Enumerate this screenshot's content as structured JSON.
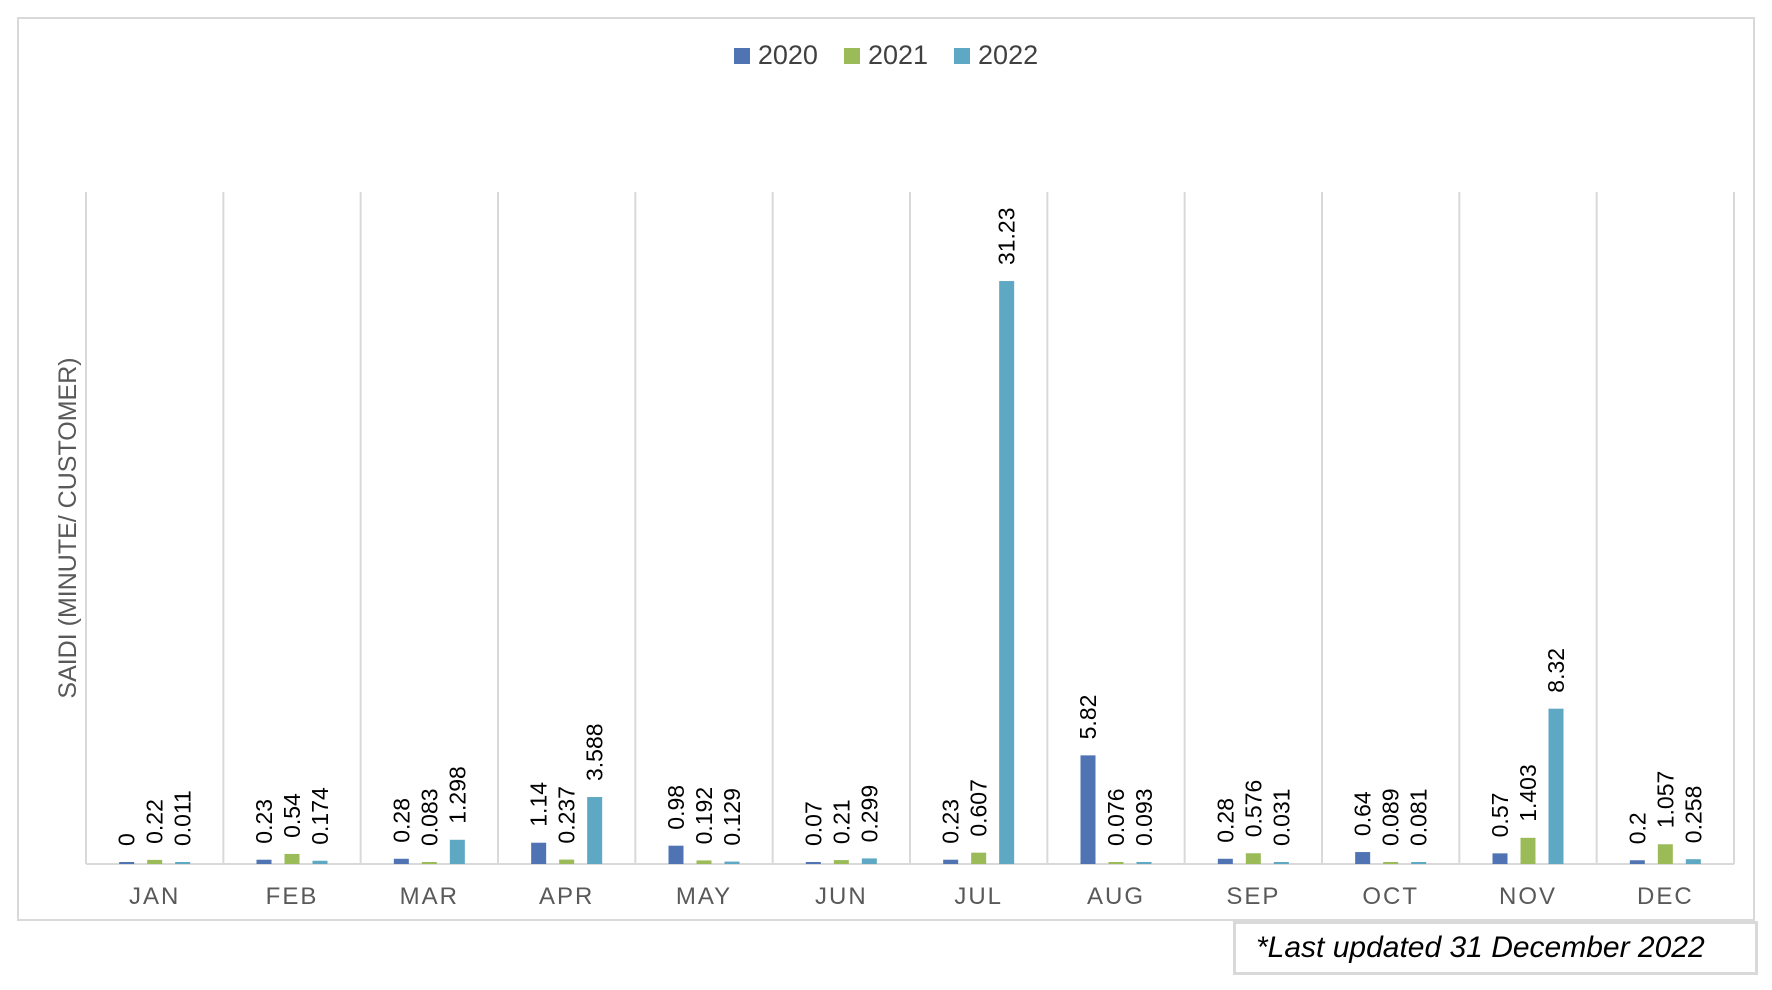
{
  "chart_data": {
    "type": "bar",
    "title": "",
    "xlabel": "",
    "ylabel": "SAIDI (MINUTE/ CUSTOMER)",
    "ylim": [
      0,
      36
    ],
    "grid": "vertical",
    "legend_position": "top-center",
    "categories": [
      "JAN",
      "FEB",
      "MAR",
      "APR",
      "MAY",
      "JUN",
      "JUL",
      "AUG",
      "SEP",
      "OCT",
      "NOV",
      "DEC"
    ],
    "series": [
      {
        "name": "2020",
        "color": "#4f73b3",
        "values": [
          0,
          0.23,
          0.28,
          1.14,
          0.98,
          0.07,
          0.23,
          5.82,
          0.28,
          0.64,
          0.57,
          0.2
        ],
        "labels": [
          "0",
          "0.23",
          "0.28",
          "1.14",
          "0.98",
          "0.07",
          "0.23",
          "5.82",
          "0.28",
          "0.64",
          "0.57",
          "0.2"
        ]
      },
      {
        "name": "2021",
        "color": "#9bbb59",
        "values": [
          0.22,
          0.54,
          0.083,
          0.237,
          0.192,
          0.21,
          0.607,
          0.076,
          0.576,
          0.089,
          1.403,
          1.057
        ],
        "labels": [
          "0.22",
          "0.54",
          "0.083",
          "0.237",
          "0.192",
          "0.21",
          "0.607",
          "0.076",
          "0.576",
          "0.089",
          "1.403",
          "1.057"
        ]
      },
      {
        "name": "2022",
        "color": "#5ea8c3",
        "values": [
          0.011,
          0.174,
          1.298,
          3.588,
          0.129,
          0.299,
          31.23,
          0.093,
          0.031,
          0.081,
          8.32,
          0.258
        ],
        "labels": [
          "0.011",
          "0.174",
          "1.298",
          "3.588",
          "0.129",
          "0.299",
          "31.23",
          "0.093",
          "0.031",
          "0.081",
          "8.32",
          "0.258"
        ]
      }
    ],
    "footnote": "*Last updated 31 December 2022"
  }
}
